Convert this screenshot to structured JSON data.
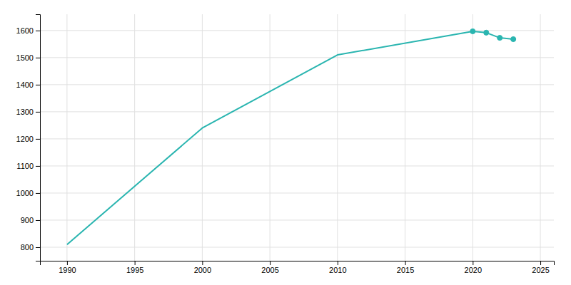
{
  "chart_data": {
    "type": "line",
    "series": [
      {
        "type": "line",
        "color": "#2ab5b0",
        "x": [
          1990,
          2000,
          2010,
          2020,
          2021,
          2022,
          2023
        ],
        "values": [
          810,
          1240,
          1510,
          1597,
          1592,
          1573,
          1568
        ]
      },
      {
        "type": "scatter",
        "marker": "circle",
        "color": "#2ab5b0",
        "x": [
          2020,
          2021,
          2022,
          2023
        ],
        "values": [
          1597,
          1592,
          1573,
          1568
        ]
      }
    ],
    "xlim": [
      1988,
      2026
    ],
    "ylim": [
      750,
      1660
    ],
    "xticks": [
      1990,
      1995,
      2000,
      2005,
      2010,
      2015,
      2020,
      2025
    ],
    "yticks": [
      800,
      900,
      1000,
      1100,
      1200,
      1300,
      1400,
      1500,
      1600
    ],
    "grid": true
  }
}
